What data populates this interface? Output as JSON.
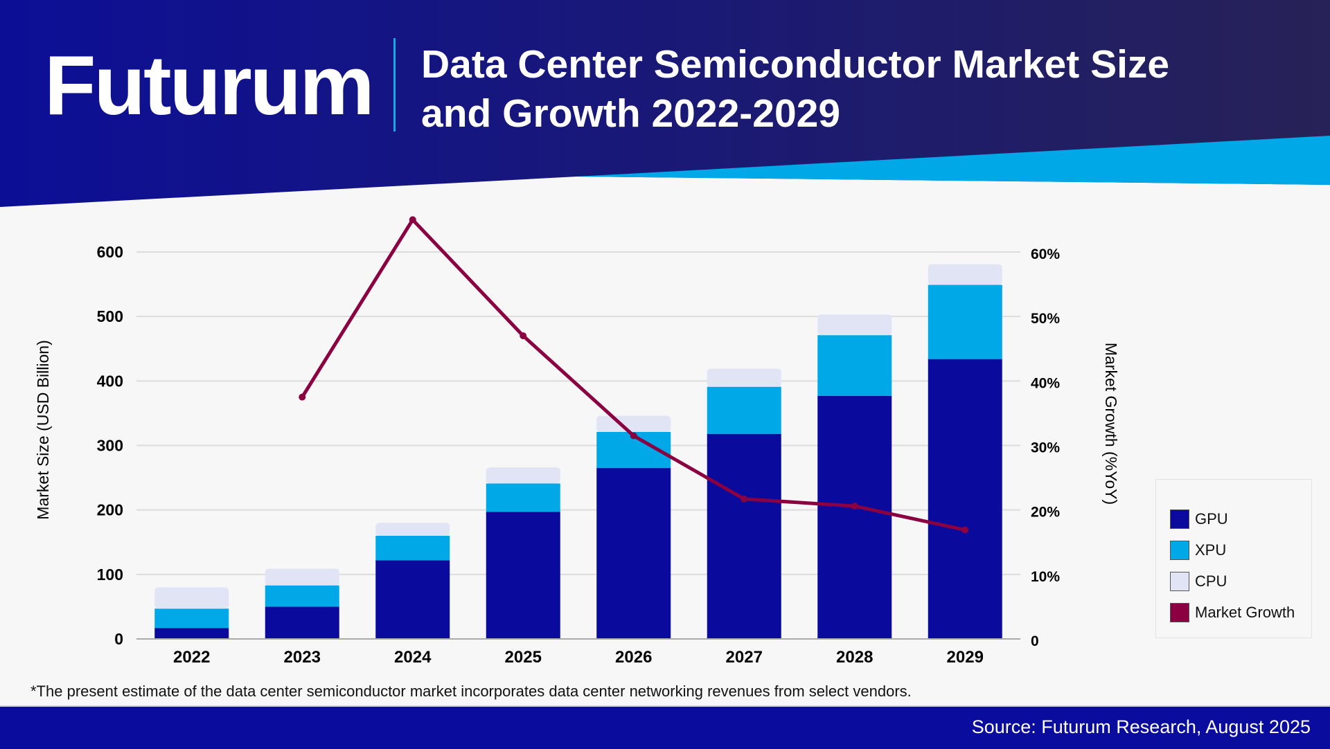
{
  "brand": {
    "logo_text": "Futurum"
  },
  "header": {
    "title_line1": "Data Center Semiconductor Market Size",
    "title_line2": "and Growth 2022-2029"
  },
  "colors": {
    "header_dark": "#0c0f96",
    "header_dark_right": "#272257",
    "accent_cyan": "#00a8e8",
    "background": "#f7f7f7",
    "footer": "#0a0c9e"
  },
  "chart_data": {
    "type": "bar",
    "stacked": true,
    "categories": [
      "2022",
      "2023",
      "2024",
      "2025",
      "2026",
      "2027",
      "2028",
      "2029"
    ],
    "series": [
      {
        "name": "GPU",
        "color": "#0a0a9c",
        "values": [
          17,
          50,
          122,
          197,
          265,
          318,
          377,
          434
        ]
      },
      {
        "name": "XPU",
        "color": "#00a8e8",
        "values": [
          30,
          33,
          38,
          44,
          56,
          73,
          94,
          115
        ]
      },
      {
        "name": "CPU",
        "color": "#e0e4f5",
        "values": [
          33,
          26,
          20,
          25,
          25,
          28,
          32,
          32
        ]
      }
    ],
    "line_series": {
      "name": "Market Growth",
      "color": "#8a0040",
      "axis": "right",
      "values": [
        null,
        37.5,
        65,
        47,
        31.5,
        21.7,
        20.6,
        16.9
      ]
    },
    "ylabel": "Market Size (USD Billion)",
    "ylabel_right": "Market Growth (%YoY)",
    "ylim": [
      0,
      600
    ],
    "ylim_right": [
      0,
      60
    ],
    "yticks": [
      0,
      100,
      200,
      300,
      400,
      500,
      600
    ],
    "yticks_right": [
      "0",
      "10%",
      "20%",
      "30%",
      "40%",
      "50%",
      "60%"
    ],
    "grid": true,
    "legend_placement": "right",
    "legend": [
      "GPU",
      "XPU",
      "CPU",
      "Market Growth"
    ]
  },
  "footnote": "*The present estimate of the data center semiconductor market incorporates data center networking revenues from select vendors.",
  "source": "Source: Futurum Research, August 2025"
}
